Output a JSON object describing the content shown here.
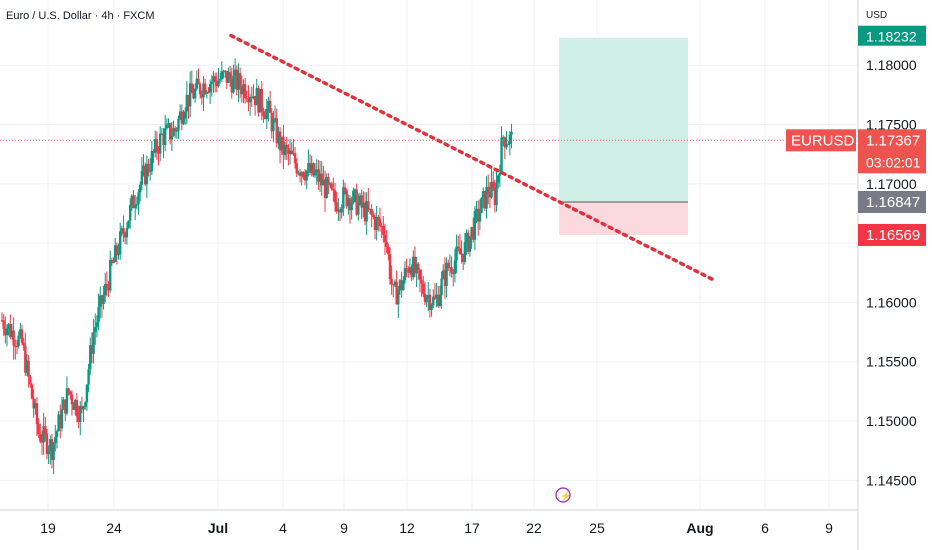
{
  "header": {
    "symbol_title": "Euro / U.S. Dollar · 4h · FXCM",
    "currency": "USD"
  },
  "price_axis": {
    "ticks": [
      "1.18000",
      "1.17500",
      "1.17000",
      "1.16000",
      "1.15500",
      "1.15000",
      "1.14500"
    ]
  },
  "time_axis": {
    "ticks": [
      "19",
      "24",
      "Jul",
      "4",
      "9",
      "12",
      "17",
      "22",
      "25",
      "Aug",
      "6",
      "9"
    ]
  },
  "price_labels": {
    "take_profit": "1.18232",
    "symbol": "EURUSD",
    "last_price": "1.17367",
    "countdown": "03:02:01",
    "entry": "1.16847",
    "stop_loss": "1.16569"
  },
  "colors": {
    "bull": "#089981",
    "bear": "#f23645",
    "trendline": "#e0313c",
    "tp_zone": "#cfeee6",
    "sl_zone": "#fcd9de",
    "entry_label": "#787b86",
    "tp_label": "#089981",
    "last_label": "#ef5350"
  },
  "chart_data": {
    "type": "candlestick",
    "title": "Euro / U.S. Dollar · 4h · FXCM",
    "ylim": [
      1.1425,
      1.1855
    ],
    "x_ticks": [
      "19",
      "24",
      "Jul",
      "4",
      "9",
      "12",
      "17",
      "22",
      "25",
      "Aug",
      "6",
      "9"
    ],
    "y_ticks": [
      1.145,
      1.15,
      1.155,
      1.16,
      1.175,
      1.18
    ],
    "close_path": [
      [
        0,
        1.1585
      ],
      [
        12,
        1.1565
      ],
      [
        22,
        1.149
      ],
      [
        30,
        1.1478
      ],
      [
        40,
        1.1525
      ],
      [
        48,
        1.1505
      ],
      [
        55,
        1.1575
      ],
      [
        65,
        1.1625
      ],
      [
        80,
        1.169
      ],
      [
        96,
        1.174
      ],
      [
        104,
        1.1745
      ],
      [
        110,
        1.177
      ],
      [
        122,
        1.1785
      ],
      [
        135,
        1.179
      ],
      [
        150,
        1.1778
      ],
      [
        160,
        1.176
      ],
      [
        168,
        1.173
      ],
      [
        178,
        1.1715
      ],
      [
        190,
        1.1705
      ],
      [
        200,
        1.1685
      ],
      [
        208,
        1.169
      ],
      [
        222,
        1.1672
      ],
      [
        230,
        1.166
      ],
      [
        235,
        1.1605
      ],
      [
        240,
        1.1615
      ],
      [
        245,
        1.1635
      ],
      [
        252,
        1.1612
      ],
      [
        260,
        1.16
      ],
      [
        268,
        1.163
      ],
      [
        278,
        1.1645
      ],
      [
        285,
        1.167
      ],
      [
        292,
        1.1695
      ],
      [
        296,
        1.169
      ],
      [
        301,
        1.174
      ],
      [
        306,
        1.1737
      ]
    ],
    "x_range": [
      0,
      430
    ],
    "trendline": {
      "x": [
        106,
        325
      ],
      "y": [
        1.1825,
        1.1618
      ]
    },
    "position": {
      "entry": 1.16847,
      "take_profit": 1.18232,
      "stop_loss": 1.16569,
      "x_start": 306,
      "x_end": 340
    },
    "last_price": 1.17367
  }
}
